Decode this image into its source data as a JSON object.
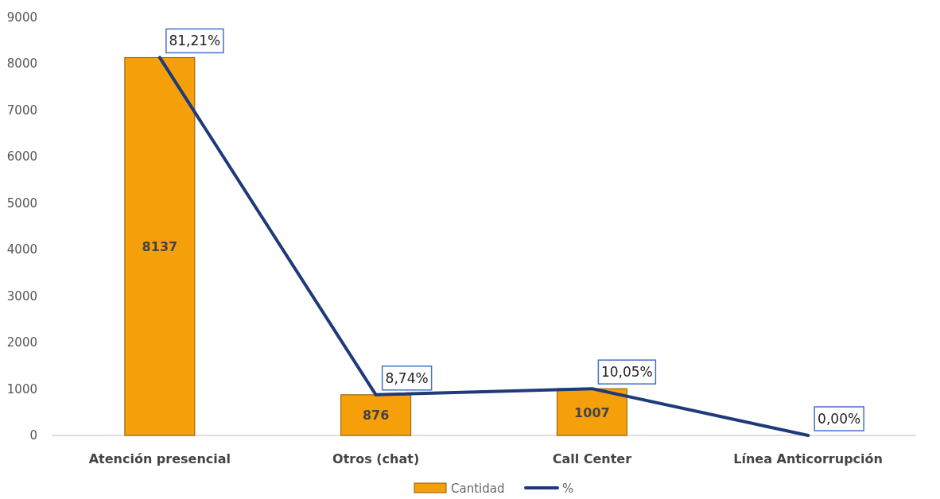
{
  "chart_data": {
    "type": "bar",
    "categories": [
      "Atención presencial",
      "Otros (chat)",
      "Call Center",
      "Línea Anticorrupción"
    ],
    "series": [
      {
        "name": "Cantidad",
        "color": "#f5a00a",
        "values": [
          8137,
          876,
          1007,
          0
        ],
        "value_labels": [
          "8137",
          "876",
          "1007",
          null
        ]
      },
      {
        "name": "%",
        "type": "line",
        "axis": "y2",
        "color": "#1f3a7a",
        "values": [
          81.21,
          8.74,
          10.05,
          0
        ],
        "value_labels": [
          "81,21%",
          "8,74%",
          "10,05%",
          "0,00%"
        ]
      }
    ],
    "ylim": [
      0,
      9000
    ],
    "yticks": [
      0,
      1000,
      2000,
      3000,
      4000,
      5000,
      6000,
      7000,
      8000,
      9000
    ],
    "tick_labels": "y",
    "grid": false,
    "legend": "bottom",
    "marker": "none",
    "line_style": "solid"
  }
}
